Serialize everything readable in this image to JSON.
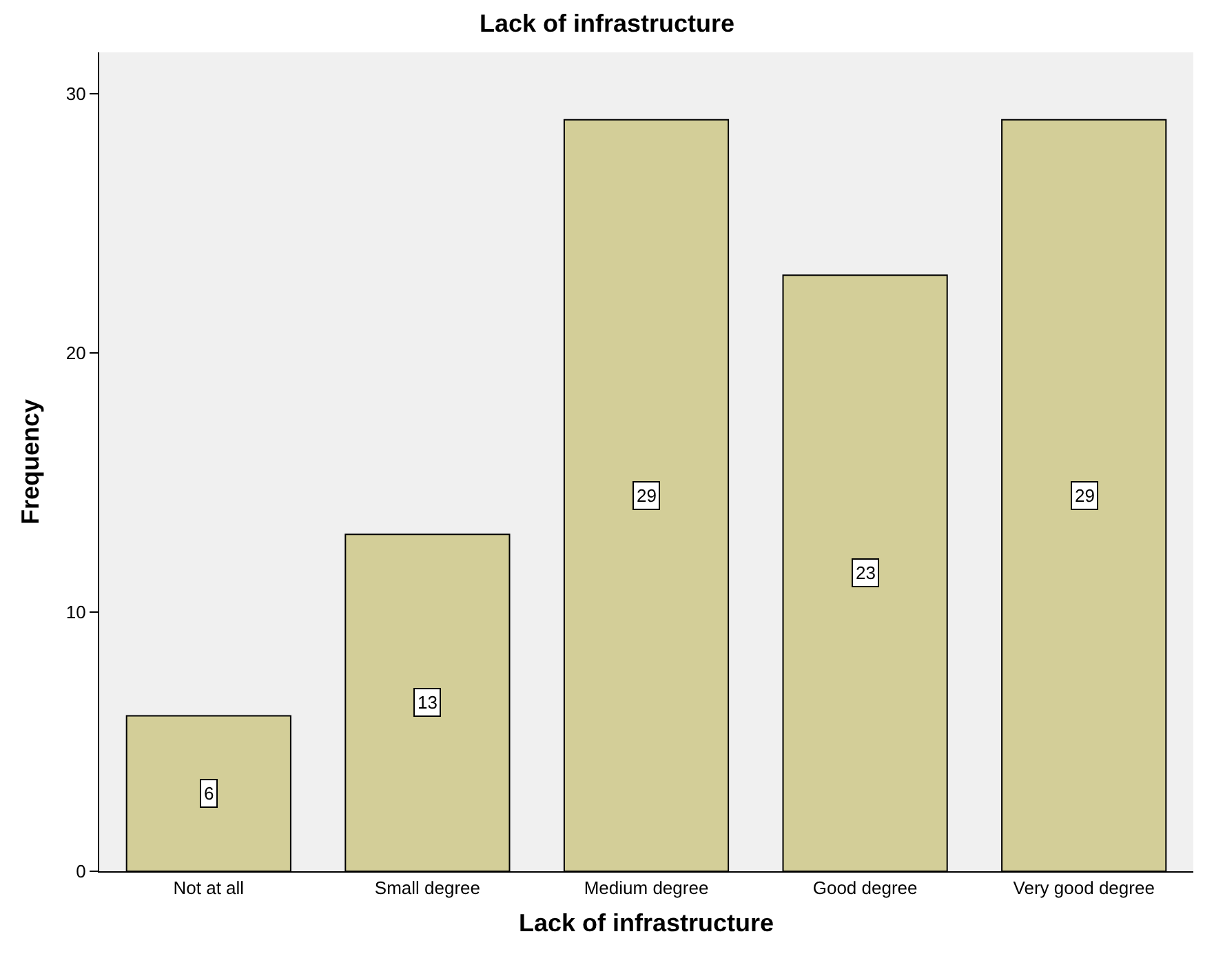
{
  "chart_data": {
    "type": "bar",
    "title": "Lack of infrastructure",
    "xlabel": "Lack of infrastructure",
    "ylabel": "Frequency",
    "categories": [
      "Not at all",
      "Small degree",
      "Medium degree",
      "Good degree",
      "Very good degree"
    ],
    "values": [
      6,
      13,
      29,
      23,
      29
    ],
    "color": "#d3ce98",
    "ylim": [
      0,
      31.6
    ],
    "yticks": [
      0,
      10,
      20,
      30
    ],
    "data_labels": true
  }
}
